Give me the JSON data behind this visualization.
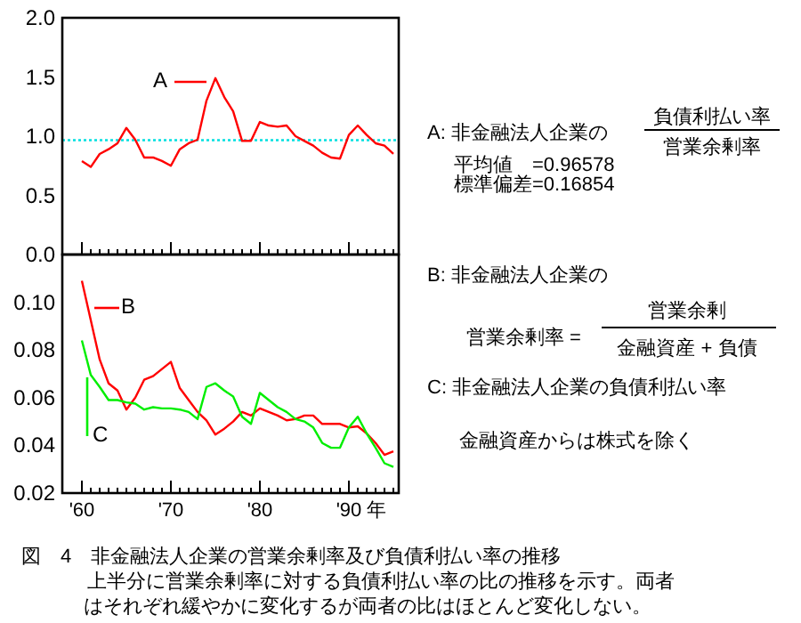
{
  "chart_data": [
    {
      "type": "line",
      "x": [
        1960,
        1961,
        1962,
        1963,
        1964,
        1965,
        1966,
        1967,
        1968,
        1969,
        1970,
        1971,
        1972,
        1973,
        1974,
        1975,
        1976,
        1977,
        1978,
        1979,
        1980,
        1981,
        1982,
        1983,
        1984,
        1985,
        1986,
        1987,
        1988,
        1989,
        1990,
        1991,
        1992,
        1993,
        1994,
        1995
      ],
      "series": [
        {
          "name": "A",
          "color": "#ff0000",
          "values": [
            0.79,
            0.74,
            0.85,
            0.89,
            0.94,
            1.07,
            0.97,
            0.82,
            0.82,
            0.79,
            0.75,
            0.89,
            0.94,
            0.97,
            1.3,
            1.49,
            1.33,
            1.21,
            0.96,
            0.96,
            1.12,
            1.09,
            1.08,
            1.09,
            1.0,
            0.96,
            0.92,
            0.86,
            0.82,
            0.81,
            1.01,
            1.09,
            1.01,
            0.94,
            0.92,
            0.85
          ]
        }
      ],
      "xlim": [
        1957.8,
        1995.6
      ],
      "ylim": [
        0,
        2
      ],
      "xticks": [
        {
          "value": 1960,
          "label": null
        },
        {
          "value": 1961,
          "label": null
        },
        {
          "value": 1962,
          "label": null
        },
        {
          "value": 1963,
          "label": null
        },
        {
          "value": 1964,
          "label": null
        },
        {
          "value": 1965,
          "label": null
        },
        {
          "value": 1966,
          "label": null
        },
        {
          "value": 1967,
          "label": null
        },
        {
          "value": 1968,
          "label": null
        },
        {
          "value": 1969,
          "label": null
        },
        {
          "value": 1970,
          "label": null
        },
        {
          "value": 1971,
          "label": null
        },
        {
          "value": 1972,
          "label": null
        },
        {
          "value": 1973,
          "label": null
        },
        {
          "value": 1974,
          "label": null
        },
        {
          "value": 1975,
          "label": null
        },
        {
          "value": 1976,
          "label": null
        },
        {
          "value": 1977,
          "label": null
        },
        {
          "value": 1978,
          "label": null
        },
        {
          "value": 1979,
          "label": null
        },
        {
          "value": 1980,
          "label": null
        },
        {
          "value": 1981,
          "label": null
        },
        {
          "value": 1982,
          "label": null
        },
        {
          "value": 1983,
          "label": null
        },
        {
          "value": 1984,
          "label": null
        },
        {
          "value": 1985,
          "label": null
        },
        {
          "value": 1986,
          "label": null
        },
        {
          "value": 1987,
          "label": null
        },
        {
          "value": 1988,
          "label": null
        },
        {
          "value": 1989,
          "label": null
        },
        {
          "value": 1990,
          "label": null
        },
        {
          "value": 1991,
          "label": null
        },
        {
          "value": 1992,
          "label": null
        },
        {
          "value": 1993,
          "label": null
        },
        {
          "value": 1994,
          "label": null
        },
        {
          "value": 1995,
          "label": null
        }
      ],
      "yticks": [
        {
          "value": 0,
          "label": "0.0"
        },
        {
          "value": 0.5,
          "label": "0.5"
        },
        {
          "value": 1,
          "label": "1.0"
        },
        {
          "value": 1.5,
          "label": "1.5"
        },
        {
          "value": 2,
          "label": "2.0"
        }
      ],
      "tick_labels": "y",
      "grid": false,
      "line_style": "solid",
      "marker": "none",
      "ref_lines": [
        {
          "axis": "y",
          "value": 0.96578,
          "color": "#00e0e0",
          "line_style": "dotted"
        }
      ],
      "annotations": [
        "A: 非金融法人企業の",
        "負債利払い率",
        "営業余剰率",
        "平均値　=0.96578",
        "標準偏差=0.16854"
      ]
    },
    {
      "type": "line",
      "x": [
        1960,
        1961,
        1962,
        1963,
        1964,
        1965,
        1966,
        1967,
        1968,
        1969,
        1970,
        1971,
        1972,
        1973,
        1974,
        1975,
        1976,
        1977,
        1978,
        1979,
        1980,
        1981,
        1982,
        1983,
        1984,
        1985,
        1986,
        1987,
        1988,
        1989,
        1990,
        1991,
        1992,
        1993,
        1994,
        1995
      ],
      "series": [
        {
          "name": "B",
          "color": "#ff0000",
          "values": [
            0.109,
            0.0925,
            0.076,
            0.066,
            0.063,
            0.055,
            0.06,
            0.0675,
            0.069,
            0.072,
            0.075,
            0.064,
            0.059,
            0.054,
            0.0505,
            0.0445,
            0.047,
            0.05,
            0.054,
            0.0525,
            0.0555,
            0.054,
            0.0525,
            0.0505,
            0.051,
            0.0525,
            0.0525,
            0.049,
            0.049,
            0.049,
            0.0475,
            0.048,
            0.045,
            0.041,
            0.036,
            0.0375
          ]
        },
        {
          "name": "C",
          "color": "#00ee00",
          "values": [
            0.084,
            0.0695,
            0.0645,
            0.059,
            0.059,
            0.058,
            0.0575,
            0.055,
            0.056,
            0.0555,
            0.0555,
            0.055,
            0.054,
            0.051,
            0.0645,
            0.066,
            0.063,
            0.0605,
            0.052,
            0.049,
            0.062,
            0.059,
            0.056,
            0.054,
            0.051,
            0.05,
            0.0475,
            0.041,
            0.039,
            0.039,
            0.0475,
            0.052,
            0.045,
            0.039,
            0.0325,
            0.031
          ]
        }
      ],
      "xlim": [
        1957.8,
        1995.6
      ],
      "ylim": [
        0.02,
        0.12
      ],
      "xticks": [
        {
          "value": 1960,
          "label": "'60"
        },
        {
          "value": 1961,
          "label": null
        },
        {
          "value": 1962,
          "label": null
        },
        {
          "value": 1963,
          "label": null
        },
        {
          "value": 1964,
          "label": null
        },
        {
          "value": 1965,
          "label": null
        },
        {
          "value": 1966,
          "label": null
        },
        {
          "value": 1967,
          "label": null
        },
        {
          "value": 1968,
          "label": null
        },
        {
          "value": 1969,
          "label": null
        },
        {
          "value": 1970,
          "label": "'70"
        },
        {
          "value": 1971,
          "label": null
        },
        {
          "value": 1972,
          "label": null
        },
        {
          "value": 1973,
          "label": null
        },
        {
          "value": 1974,
          "label": null
        },
        {
          "value": 1975,
          "label": null
        },
        {
          "value": 1976,
          "label": null
        },
        {
          "value": 1977,
          "label": null
        },
        {
          "value": 1978,
          "label": null
        },
        {
          "value": 1979,
          "label": null
        },
        {
          "value": 1980,
          "label": "'80"
        },
        {
          "value": 1981,
          "label": null
        },
        {
          "value": 1982,
          "label": null
        },
        {
          "value": 1983,
          "label": null
        },
        {
          "value": 1984,
          "label": null
        },
        {
          "value": 1985,
          "label": null
        },
        {
          "value": 1986,
          "label": null
        },
        {
          "value": 1987,
          "label": null
        },
        {
          "value": 1988,
          "label": null
        },
        {
          "value": 1989,
          "label": null
        },
        {
          "value": 1990,
          "label": "'90"
        },
        {
          "value": 1991,
          "label": null
        },
        {
          "value": 1992,
          "label": null
        },
        {
          "value": 1993,
          "label": null
        },
        {
          "value": 1994,
          "label": null
        },
        {
          "value": 1995,
          "label": null
        }
      ],
      "yticks": [
        0.02,
        0.04,
        0.06,
        0.08,
        {
          "value": 0.1,
          "label": "0.10"
        }
      ],
      "xlabel": "年",
      "grid": false,
      "line_style": "solid",
      "marker": "none",
      "annotations": [
        "B: 非金融法人企業の",
        "営業余剰率 =",
        "営業余剰",
        "金融資産 + 負債",
        "C: 非金融法人企業の負債利払い率",
        "金融資産からは株式を除く",
        "図　4　非金融法人企業の営業余剰率及び負債利払い率の推移",
        "上半分に営業余剰率に対する負債利払い率の比の推移を示す。両者",
        "はそれぞれ緩やかに変化するが両者の比はほとんど変化しない。"
      ]
    }
  ]
}
